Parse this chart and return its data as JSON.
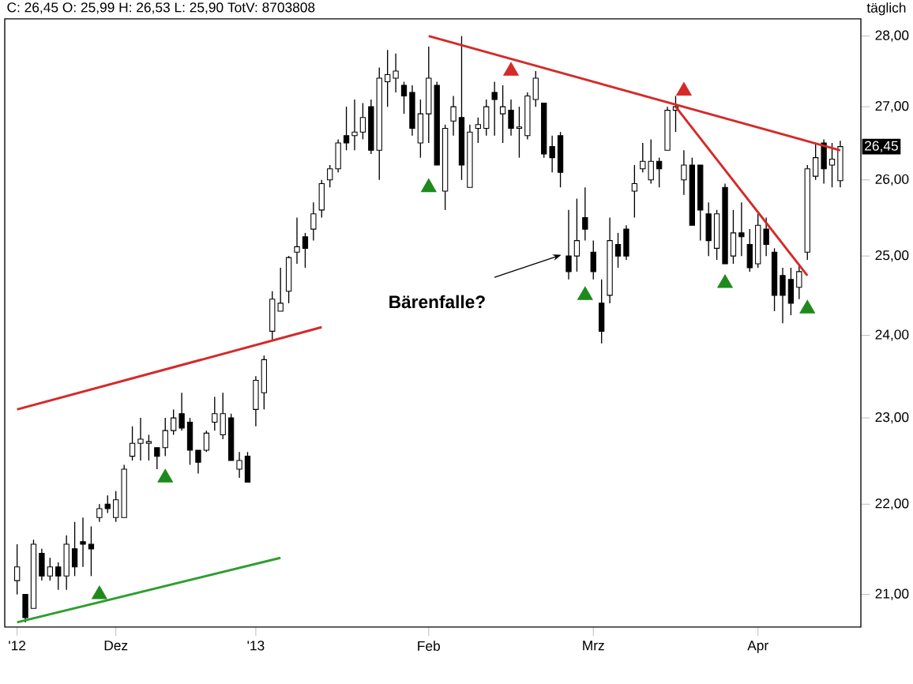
{
  "chart_data": {
    "type": "candlestick",
    "title": "C: 26,45 O: 25,99 H: 26,53 L: 25,90 TotV: 8703808",
    "log": "y",
    "annotations": [
      "Bärenfalle?",
      "täglich",
      {
        "text": "26,45",
        "y": 26.45
      }
    ],
    "categories": [
      "'12",
      null,
      null,
      null,
      null,
      null,
      null,
      null,
      null,
      null,
      null,
      null,
      "Dez",
      null,
      null,
      null,
      null,
      null,
      null,
      null,
      null,
      null,
      null,
      null,
      null,
      null,
      null,
      null,
      null,
      "'13",
      null,
      null,
      null,
      null,
      null,
      null,
      null,
      null,
      null,
      null,
      null,
      null,
      null,
      null,
      null,
      null,
      null,
      null,
      null,
      null,
      "Feb",
      null,
      null,
      null,
      null,
      null,
      null,
      null,
      null,
      null,
      null,
      null,
      null,
      null,
      null,
      null,
      null,
      null,
      null,
      null,
      "Mrz",
      null,
      null,
      null,
      null,
      null,
      null,
      null,
      null,
      null,
      null,
      null,
      null,
      null,
      null,
      null,
      null,
      null,
      null,
      null,
      "Apr",
      null,
      null,
      null,
      null,
      null,
      null,
      null,
      null,
      null,
      null
    ],
    "ylim": [
      20.65,
      28.25
    ],
    "yticks": [
      {
        "value": 21,
        "label": "21,00"
      },
      {
        "value": 22,
        "label": "22,00"
      },
      {
        "value": 23,
        "label": "23,00"
      },
      {
        "value": 24,
        "label": "24,00"
      },
      {
        "value": 25,
        "label": "25,00"
      },
      {
        "value": 26,
        "label": "26,00"
      },
      {
        "value": 27,
        "label": "27,00"
      },
      {
        "value": 28,
        "label": "28,00"
      }
    ],
    "ohlc": [
      [
        21.15,
        21.55,
        21.0,
        21.3
      ],
      [
        21.0,
        21.0,
        20.7,
        20.75
      ],
      [
        20.85,
        21.6,
        20.85,
        21.55
      ],
      [
        21.45,
        21.5,
        21.15,
        21.2
      ],
      [
        21.2,
        21.4,
        21.15,
        21.3
      ],
      [
        21.3,
        21.35,
        21.05,
        21.2
      ],
      [
        21.2,
        21.65,
        21.05,
        21.55
      ],
      [
        21.5,
        21.8,
        21.2,
        21.3
      ],
      [
        21.58,
        21.85,
        21.3,
        21.55
      ],
      [
        21.55,
        21.75,
        21.2,
        21.5
      ],
      [
        21.85,
        22.0,
        21.8,
        21.95
      ],
      [
        22.0,
        22.1,
        21.9,
        21.95
      ],
      [
        21.85,
        22.15,
        21.8,
        22.05
      ],
      [
        21.85,
        22.45,
        21.85,
        22.4
      ],
      [
        22.55,
        22.9,
        22.5,
        22.7
      ],
      [
        22.7,
        23.0,
        22.5,
        22.75
      ],
      [
        22.7,
        22.8,
        22.5,
        22.72
      ],
      [
        22.65,
        22.65,
        22.4,
        22.55
      ],
      [
        22.65,
        23.0,
        22.55,
        22.85
      ],
      [
        22.85,
        23.1,
        22.8,
        23.0
      ],
      [
        23.05,
        23.3,
        22.85,
        22.88
      ],
      [
        22.95,
        23.0,
        22.45,
        22.62
      ],
      [
        22.62,
        22.62,
        22.35,
        22.48
      ],
      [
        22.62,
        22.85,
        22.6,
        22.82
      ],
      [
        22.95,
        23.25,
        22.85,
        23.05
      ],
      [
        22.8,
        23.3,
        22.75,
        23.05
      ],
      [
        23.0,
        23.05,
        22.5,
        22.5
      ],
      [
        22.4,
        22.6,
        22.3,
        22.5
      ],
      [
        22.55,
        22.6,
        22.25,
        22.25
      ],
      [
        23.1,
        23.5,
        22.9,
        23.45
      ],
      [
        23.3,
        23.75,
        23.1,
        23.7
      ],
      [
        24.05,
        24.55,
        23.95,
        24.45
      ],
      [
        24.3,
        24.85,
        24.3,
        24.4
      ],
      [
        24.55,
        25.0,
        24.4,
        24.98
      ],
      [
        25.05,
        25.5,
        24.9,
        25.12
      ],
      [
        25.25,
        25.3,
        24.85,
        25.1
      ],
      [
        25.35,
        25.7,
        25.2,
        25.55
      ],
      [
        25.6,
        26.0,
        25.5,
        25.95
      ],
      [
        26.0,
        26.2,
        25.9,
        26.15
      ],
      [
        26.15,
        26.55,
        26.1,
        26.5
      ],
      [
        26.6,
        27.0,
        26.4,
        26.5
      ],
      [
        26.6,
        27.1,
        26.4,
        26.65
      ],
      [
        26.65,
        27.05,
        26.55,
        26.85
      ],
      [
        27.0,
        27.1,
        26.35,
        26.4
      ],
      [
        26.4,
        27.55,
        26.0,
        27.4
      ],
      [
        27.35,
        27.8,
        27.0,
        27.45
      ],
      [
        27.4,
        27.75,
        27.2,
        27.5
      ],
      [
        27.3,
        27.35,
        26.9,
        27.15
      ],
      [
        27.2,
        27.3,
        26.6,
        26.7
      ],
      [
        26.5,
        27.1,
        26.3,
        26.9
      ],
      [
        26.9,
        27.85,
        26.5,
        27.4
      ],
      [
        27.3,
        27.35,
        26.2,
        26.2
      ],
      [
        25.85,
        26.75,
        25.6,
        26.7
      ],
      [
        26.8,
        27.15,
        26.6,
        27.0
      ],
      [
        26.85,
        28.0,
        26.0,
        26.2
      ],
      [
        25.9,
        26.75,
        25.9,
        26.65
      ],
      [
        26.7,
        26.85,
        26.5,
        26.75
      ],
      [
        26.7,
        27.1,
        26.6,
        27.0
      ],
      [
        27.2,
        27.35,
        26.6,
        27.1
      ],
      [
        26.9,
        27.3,
        26.5,
        27.0
      ],
      [
        26.95,
        27.1,
        26.6,
        26.7
      ],
      [
        26.7,
        27.0,
        26.3,
        26.72
      ],
      [
        26.6,
        27.2,
        26.55,
        27.15
      ],
      [
        27.1,
        27.5,
        27.0,
        27.4
      ],
      [
        27.05,
        27.05,
        26.3,
        26.35
      ],
      [
        26.45,
        26.6,
        26.1,
        26.3
      ],
      [
        26.6,
        26.65,
        25.9,
        26.1
      ],
      [
        25.0,
        25.6,
        24.7,
        24.8
      ],
      [
        25.0,
        25.75,
        24.8,
        25.2
      ],
      [
        25.5,
        25.9,
        25.2,
        25.35
      ],
      [
        25.05,
        25.2,
        24.7,
        24.8
      ],
      [
        24.4,
        24.7,
        23.9,
        24.05
      ],
      [
        24.5,
        25.5,
        24.4,
        25.2
      ],
      [
        25.15,
        25.3,
        24.85,
        25.0
      ],
      [
        25.35,
        25.4,
        24.95,
        25.0
      ],
      [
        25.85,
        26.2,
        25.5,
        25.95
      ],
      [
        26.15,
        26.5,
        26.1,
        26.25
      ],
      [
        26.0,
        26.55,
        25.95,
        26.25
      ],
      [
        26.25,
        26.3,
        25.9,
        26.15
      ],
      [
        26.4,
        27.0,
        26.4,
        26.95
      ],
      [
        26.95,
        27.15,
        26.65,
        27.0
      ],
      [
        26.0,
        26.4,
        25.8,
        26.2
      ],
      [
        26.2,
        26.3,
        25.4,
        25.4
      ],
      [
        26.2,
        26.2,
        25.2,
        25.6
      ],
      [
        25.55,
        25.7,
        25.0,
        25.2
      ],
      [
        25.1,
        25.6,
        24.95,
        25.55
      ],
      [
        25.9,
        25.95,
        24.9,
        24.9
      ],
      [
        25.0,
        25.6,
        24.9,
        25.3
      ],
      [
        25.3,
        25.7,
        25.0,
        25.25
      ],
      [
        25.15,
        25.35,
        24.8,
        24.85
      ],
      [
        24.9,
        25.55,
        24.85,
        25.4
      ],
      [
        25.35,
        25.5,
        25.0,
        25.15
      ],
      [
        25.05,
        25.1,
        24.3,
        24.5
      ],
      [
        24.75,
        24.85,
        24.15,
        24.5
      ],
      [
        24.7,
        24.85,
        24.25,
        24.4
      ],
      [
        24.6,
        24.9,
        24.45,
        24.8
      ],
      [
        25.05,
        26.2,
        24.95,
        26.15
      ],
      [
        26.05,
        26.5,
        26.0,
        26.3
      ],
      [
        26.5,
        26.55,
        25.95,
        26.15
      ],
      [
        26.2,
        26.5,
        25.9,
        26.28
      ],
      [
        25.99,
        26.53,
        25.9,
        26.45
      ]
    ],
    "series": [
      {
        "type": "line",
        "color": "#d42a2a",
        "values": [
          23.1,
          null,
          null,
          null,
          null,
          null,
          null,
          null,
          null,
          null,
          null,
          null,
          null,
          null,
          null,
          null,
          null,
          null,
          null,
          null,
          null,
          null,
          null,
          null,
          null,
          null,
          null,
          null,
          null,
          null,
          null,
          null,
          null,
          null,
          null,
          null,
          null,
          24.1,
          null,
          null,
          null,
          null,
          null,
          null,
          null,
          null,
          null,
          null,
          null,
          null,
          null,
          null,
          null,
          null,
          null,
          null,
          null,
          null,
          null,
          null,
          null,
          null,
          null,
          null,
          null,
          null,
          null,
          null,
          null,
          null,
          null,
          null,
          null,
          null,
          null,
          null,
          null,
          null,
          null,
          null,
          null,
          null,
          null,
          null,
          null,
          null,
          null,
          null,
          null,
          null,
          null,
          null,
          null,
          null,
          null,
          null,
          null,
          null,
          null,
          null,
          null
        ]
      },
      {
        "type": "line",
        "color": "#2f9e2f",
        "values": [
          20.7,
          null,
          null,
          null,
          null,
          null,
          null,
          null,
          null,
          null,
          null,
          null,
          null,
          null,
          null,
          null,
          null,
          null,
          null,
          null,
          null,
          null,
          null,
          null,
          null,
          null,
          null,
          null,
          null,
          null,
          null,
          null,
          21.4,
          null,
          null,
          null,
          null,
          null,
          null,
          null,
          null,
          null,
          null,
          null,
          null,
          null,
          null,
          null,
          null,
          null,
          null,
          null,
          null,
          null,
          null,
          null,
          null,
          null,
          null,
          null,
          null,
          null,
          null,
          null,
          null,
          null,
          null,
          null,
          null,
          null,
          null,
          null,
          null,
          null,
          null,
          null,
          null,
          null,
          null,
          null,
          null,
          null,
          null,
          null,
          null,
          null,
          null,
          null,
          null,
          null,
          null,
          null,
          null,
          null,
          null,
          null,
          null,
          null,
          null,
          null,
          null
        ]
      },
      {
        "type": "line",
        "color": "#d42a2a",
        "values": [
          null,
          null,
          null,
          null,
          null,
          null,
          null,
          null,
          null,
          null,
          null,
          null,
          null,
          null,
          null,
          null,
          null,
          null,
          null,
          null,
          null,
          null,
          null,
          null,
          null,
          null,
          null,
          null,
          null,
          null,
          null,
          null,
          null,
          null,
          null,
          null,
          null,
          null,
          null,
          null,
          null,
          null,
          null,
          null,
          null,
          null,
          null,
          null,
          null,
          null,
          28.0,
          null,
          null,
          null,
          null,
          null,
          null,
          null,
          null,
          null,
          null,
          null,
          null,
          null,
          null,
          null,
          null,
          null,
          null,
          null,
          null,
          null,
          null,
          null,
          null,
          null,
          null,
          null,
          null,
          null,
          null,
          null,
          null,
          null,
          null,
          null,
          null,
          null,
          null,
          null,
          null,
          null,
          null,
          null,
          null,
          null,
          null,
          null,
          null,
          null,
          26.4
        ]
      },
      {
        "type": "line",
        "color": "#d42a2a",
        "values": [
          null,
          null,
          null,
          null,
          null,
          null,
          null,
          null,
          null,
          null,
          null,
          null,
          null,
          null,
          null,
          null,
          null,
          null,
          null,
          null,
          null,
          null,
          null,
          null,
          null,
          null,
          null,
          null,
          null,
          null,
          null,
          null,
          null,
          null,
          null,
          null,
          null,
          null,
          null,
          null,
          null,
          null,
          null,
          null,
          null,
          null,
          null,
          null,
          null,
          null,
          null,
          null,
          null,
          null,
          null,
          null,
          null,
          null,
          null,
          null,
          null,
          null,
          null,
          null,
          null,
          null,
          null,
          null,
          null,
          null,
          null,
          null,
          null,
          null,
          null,
          null,
          null,
          null,
          null,
          null,
          27.0,
          null,
          null,
          null,
          null,
          null,
          null,
          null,
          null,
          null,
          null,
          null,
          null,
          null,
          null,
          null,
          24.75,
          null,
          null,
          null,
          null
        ]
      },
      {
        "type": "scatter",
        "marker": "triangle",
        "color": "#1e8a1e",
        "values": [
          null,
          null,
          null,
          null,
          null,
          null,
          null,
          null,
          null,
          null,
          21.0,
          null,
          null,
          null,
          null,
          null,
          null,
          null,
          22.3,
          null,
          null,
          null,
          null,
          null,
          null,
          null,
          null,
          null,
          null,
          null,
          null,
          null,
          null,
          null,
          null,
          null,
          null,
          null,
          null,
          null,
          null,
          null,
          null,
          null,
          null,
          null,
          null,
          null,
          null,
          null,
          25.9,
          null,
          null,
          null,
          null,
          null,
          null,
          null,
          null,
          null,
          null,
          null,
          null,
          null,
          null,
          null,
          null,
          null,
          null,
          24.5,
          null,
          null,
          null,
          null,
          null,
          null,
          null,
          null,
          null,
          null,
          null,
          null,
          null,
          null,
          null,
          null,
          24.65,
          null,
          null,
          null,
          null,
          null,
          null,
          null,
          null,
          null,
          24.33,
          null,
          null,
          null,
          null
        ]
      },
      {
        "type": "scatter",
        "marker": "triangle",
        "color": "#d42a2a",
        "values": [
          null,
          null,
          null,
          null,
          null,
          null,
          null,
          null,
          null,
          null,
          null,
          null,
          null,
          null,
          null,
          null,
          null,
          null,
          null,
          null,
          null,
          null,
          null,
          null,
          null,
          null,
          null,
          null,
          null,
          null,
          null,
          null,
          null,
          null,
          null,
          null,
          null,
          null,
          null,
          null,
          null,
          null,
          null,
          null,
          null,
          null,
          null,
          null,
          null,
          null,
          null,
          null,
          null,
          null,
          null,
          null,
          null,
          null,
          null,
          null,
          27.5,
          null,
          null,
          null,
          null,
          null,
          null,
          null,
          null,
          null,
          null,
          null,
          null,
          null,
          null,
          null,
          null,
          null,
          null,
          null,
          null,
          27.22,
          null,
          null,
          null,
          null,
          null,
          null,
          null,
          null,
          null,
          null,
          null,
          null,
          null,
          null,
          null,
          null,
          null,
          null,
          null
        ]
      }
    ]
  }
}
